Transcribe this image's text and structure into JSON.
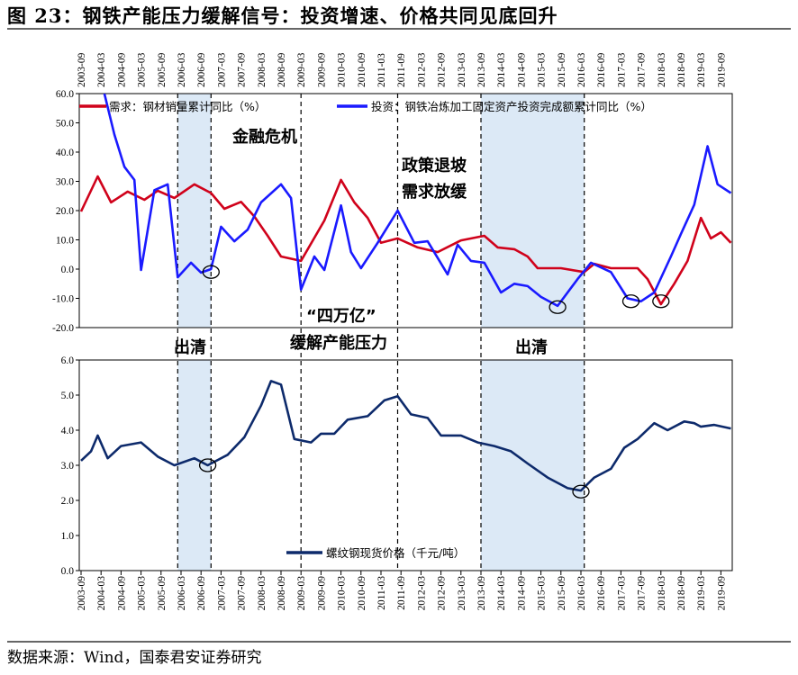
{
  "title": "图 23：钢铁产能压力缓解信号：投资增速、价格共同见底回升",
  "footer": "数据来源：Wind，国泰君安证券研究",
  "chart_data": [
    {
      "type": "line",
      "x_tick_labels": [
        "2003-09",
        "2004-03",
        "2004-09",
        "2005-03",
        "2005-09",
        "2006-03",
        "2006-09",
        "2007-03",
        "2007-09",
        "2008-03",
        "2008-09",
        "2009-03",
        "2009-09",
        "2010-03",
        "2010-09",
        "2011-03",
        "2011-09",
        "2012-03",
        "2012-09",
        "2013-03",
        "2013-09",
        "2014-03",
        "2014-09",
        "2015-03",
        "2015-09",
        "2016-03",
        "2016-09",
        "2017-03",
        "2017-09",
        "2018-03",
        "2018-09",
        "2019-03",
        "2019-09"
      ],
      "ylim": [
        -20,
        60
      ],
      "y_ticks": [
        "60.0",
        "50.0",
        "40.0",
        "30.0",
        "20.0",
        "10.0",
        "0.0",
        "-10.0",
        "-20.0"
      ],
      "grid": false,
      "legend_position": "top",
      "series": [
        {
          "name": "需求：钢材销量累计同比（%）",
          "color": "#d0021b",
          "points": [
            [
              "2003-09",
              19.7
            ],
            [
              "2004-02",
              31.7
            ],
            [
              "2004-06",
              22.8
            ],
            [
              "2004-11",
              26.5
            ],
            [
              "2005-04",
              23.7
            ],
            [
              "2005-08",
              26.8
            ],
            [
              "2006-01",
              24.3
            ],
            [
              "2006-07",
              29
            ],
            [
              "2006-12",
              26
            ],
            [
              "2007-04",
              20.6
            ],
            [
              "2007-09",
              23
            ],
            [
              "2008-01",
              18
            ],
            [
              "2008-05",
              11.4
            ],
            [
              "2008-09",
              4.3
            ],
            [
              "2009-03",
              2.8
            ],
            [
              "2009-10",
              16.6
            ],
            [
              "2010-03",
              30.5
            ],
            [
              "2010-07",
              22.8
            ],
            [
              "2010-11",
              17.5
            ],
            [
              "2011-03",
              9
            ],
            [
              "2011-08",
              10.5
            ],
            [
              "2012-02",
              7.4
            ],
            [
              "2012-08",
              5.8
            ],
            [
              "2013-03",
              9.8
            ],
            [
              "2013-10",
              11.4
            ],
            [
              "2014-02",
              7.4
            ],
            [
              "2014-07",
              6.8
            ],
            [
              "2014-11",
              4.3
            ],
            [
              "2015-02",
              0.3
            ],
            [
              "2015-09",
              0.3
            ],
            [
              "2016-04",
              -1
            ],
            [
              "2016-07",
              1.8
            ],
            [
              "2016-12",
              0.3
            ],
            [
              "2017-08",
              0.3
            ],
            [
              "2017-11",
              -3.4
            ],
            [
              "2018-03",
              -12
            ],
            [
              "2018-07",
              -5
            ],
            [
              "2018-11",
              2.8
            ],
            [
              "2019-03",
              17.5
            ],
            [
              "2019-06",
              10.5
            ],
            [
              "2019-09",
              12.6
            ],
            [
              "2019-12",
              9
            ]
          ]
        },
        {
          "name": "投资：钢铁冶炼加工固定资产投资完成额累计同比（%）",
          "color": "#1a1aff",
          "points": [
            [
              "2004-04",
              60
            ],
            [
              "2004-07",
              46
            ],
            [
              "2004-10",
              35
            ],
            [
              "2005-01",
              30.5
            ],
            [
              "2005-03",
              -0.3
            ],
            [
              "2005-07",
              27
            ],
            [
              "2005-11",
              29
            ],
            [
              "2006-02",
              -2.8
            ],
            [
              "2006-06",
              2.2
            ],
            [
              "2006-09",
              -1.2
            ],
            [
              "2006-12",
              0
            ],
            [
              "2007-03",
              14.5
            ],
            [
              "2007-07",
              9.5
            ],
            [
              "2007-11",
              13.5
            ],
            [
              "2008-03",
              22.8
            ],
            [
              "2008-09",
              29
            ],
            [
              "2008-12",
              24.3
            ],
            [
              "2009-03",
              -7
            ],
            [
              "2009-07",
              4.3
            ],
            [
              "2009-10",
              -0.3
            ],
            [
              "2010-03",
              21.8
            ],
            [
              "2010-06",
              5.8
            ],
            [
              "2010-09",
              0.3
            ],
            [
              "2011-02",
              9
            ],
            [
              "2011-08",
              20
            ],
            [
              "2012-01",
              9
            ],
            [
              "2012-05",
              9.5
            ],
            [
              "2012-11",
              -1.8
            ],
            [
              "2013-02",
              8.3
            ],
            [
              "2013-06",
              2.8
            ],
            [
              "2013-10",
              2.2
            ],
            [
              "2014-03",
              -8
            ],
            [
              "2014-07",
              -5
            ],
            [
              "2014-11",
              -5.8
            ],
            [
              "2015-03",
              -9.5
            ],
            [
              "2015-08",
              -12.6
            ],
            [
              "2016-02",
              -3.4
            ],
            [
              "2016-06",
              2.2
            ],
            [
              "2016-12",
              -1
            ],
            [
              "2017-05",
              -10
            ],
            [
              "2017-09",
              -11
            ],
            [
              "2018-01",
              -8
            ],
            [
              "2018-06",
              4.3
            ],
            [
              "2018-09",
              12
            ],
            [
              "2019-01",
              22
            ],
            [
              "2019-05",
              42
            ],
            [
              "2019-08",
              29
            ],
            [
              "2019-12",
              26
            ]
          ]
        }
      ],
      "annotations": [
        "金融危机",
        "政策退坡",
        "需求放缓"
      ],
      "circled_points": [
        [
          "2006-12",
          -1
        ],
        [
          "2015-08",
          -13
        ],
        [
          "2017-06",
          -11
        ],
        [
          "2018-03",
          -11
        ]
      ]
    },
    {
      "type": "line",
      "ylim": [
        0,
        6
      ],
      "y_ticks": [
        "6.0",
        "5.0",
        "4.0",
        "3.0",
        "2.0",
        "1.0",
        "0.0"
      ],
      "grid": false,
      "legend_position": "bottom-center",
      "series": [
        {
          "name": "螺纹钢现货价格（千元/吨）",
          "color": "#0d2a6b",
          "points": [
            [
              "2003-09",
              3.13
            ],
            [
              "2003-12",
              3.4
            ],
            [
              "2004-02",
              3.85
            ],
            [
              "2004-05",
              3.2
            ],
            [
              "2004-09",
              3.55
            ],
            [
              "2005-03",
              3.65
            ],
            [
              "2005-08",
              3.25
            ],
            [
              "2006-01",
              3.0
            ],
            [
              "2006-07",
              3.2
            ],
            [
              "2006-11",
              3.0
            ],
            [
              "2007-05",
              3.3
            ],
            [
              "2007-10",
              3.8
            ],
            [
              "2008-03",
              4.7
            ],
            [
              "2008-06",
              5.4
            ],
            [
              "2008-09",
              5.3
            ],
            [
              "2009-01",
              3.75
            ],
            [
              "2009-06",
              3.65
            ],
            [
              "2009-09",
              3.9
            ],
            [
              "2010-01",
              3.9
            ],
            [
              "2010-05",
              4.3
            ],
            [
              "2010-11",
              4.4
            ],
            [
              "2011-04",
              4.85
            ],
            [
              "2011-08",
              4.97
            ],
            [
              "2011-12",
              4.45
            ],
            [
              "2012-05",
              4.35
            ],
            [
              "2012-09",
              3.85
            ],
            [
              "2013-03",
              3.85
            ],
            [
              "2013-08",
              3.65
            ],
            [
              "2014-01",
              3.55
            ],
            [
              "2014-06",
              3.4
            ],
            [
              "2014-11",
              3.05
            ],
            [
              "2015-05",
              2.65
            ],
            [
              "2015-11",
              2.35
            ],
            [
              "2016-03",
              2.28
            ],
            [
              "2016-07",
              2.65
            ],
            [
              "2016-12",
              2.9
            ],
            [
              "2017-04",
              3.5
            ],
            [
              "2017-08",
              3.75
            ],
            [
              "2018-01",
              4.2
            ],
            [
              "2018-05",
              4.0
            ],
            [
              "2018-10",
              4.25
            ],
            [
              "2019-01",
              4.2
            ],
            [
              "2019-03",
              4.1
            ],
            [
              "2019-07",
              4.15
            ],
            [
              "2019-12",
              4.05
            ]
          ]
        }
      ],
      "circled_points": [
        [
          "2006-11",
          3.0
        ],
        [
          "2016-03",
          2.25
        ]
      ]
    }
  ],
  "shaded_periods": [
    {
      "label": "出清",
      "start": "2006-02",
      "end": "2006-12"
    },
    {
      "label": "出清",
      "start": "2013-09",
      "end": "2016-04"
    }
  ],
  "event_lines": [
    "2006-02",
    "2006-12",
    "2009-03",
    "2011-08",
    "2013-09",
    "2016-04"
  ],
  "event_annotations": {
    "stimulus": "“四万亿”",
    "stimulus_effect": "缓解产能压力"
  },
  "colors": {
    "shade": "#dce9f6",
    "demand": "#d0021b",
    "investment": "#1a1aff",
    "price": "#0d2a6b"
  }
}
